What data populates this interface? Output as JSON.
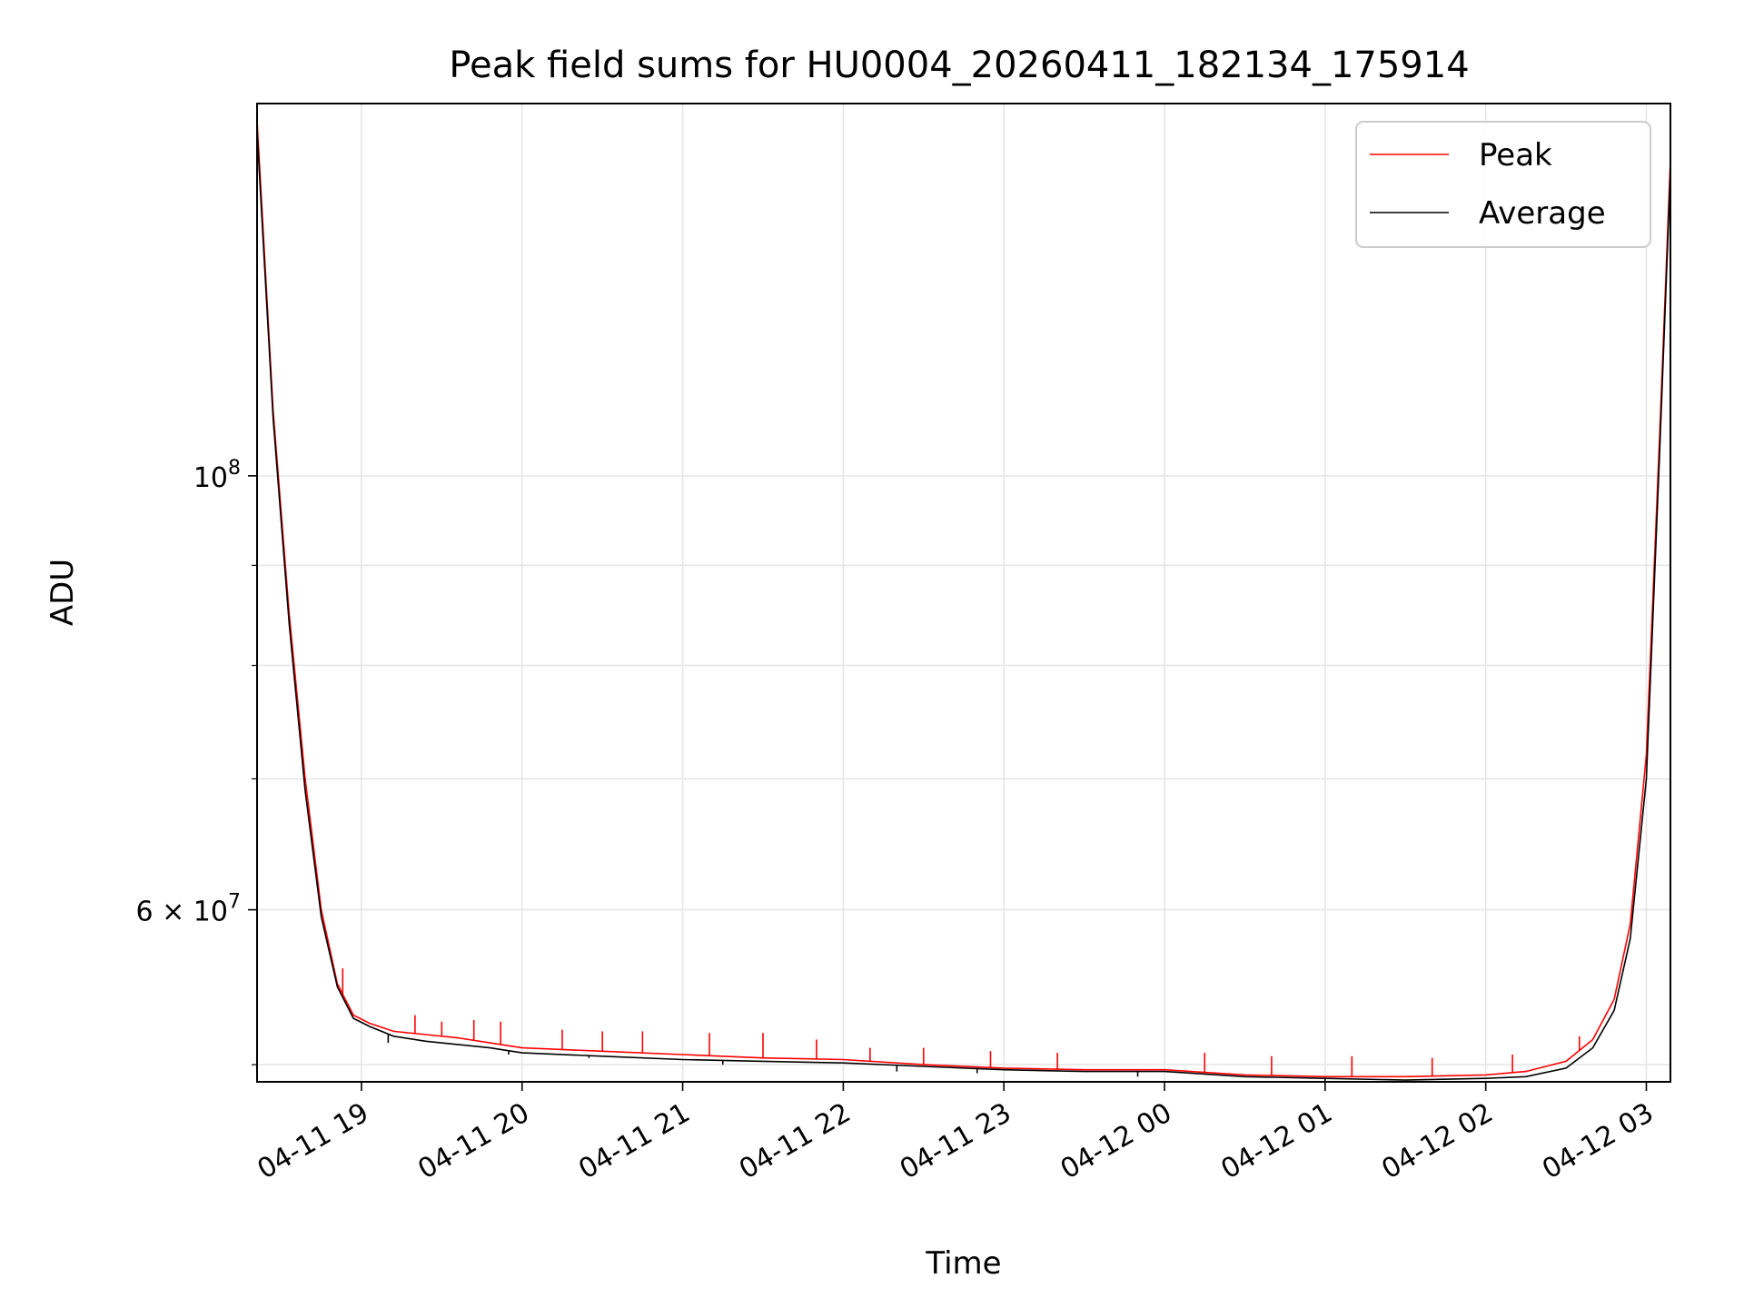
{
  "chart_data": {
    "type": "line",
    "title": "Peak field sums for HU0004_20260411_182134_175914",
    "xlabel": "Time",
    "ylabel": "ADU",
    "yscale": "log",
    "xlim": [
      "2026-04-11 18:21",
      "2026-04-12 03:09"
    ],
    "ylim": [
      49000000,
      155000000
    ],
    "x_ticks": [
      {
        "label": "04-11 19",
        "value": "2026-04-11 19:00"
      },
      {
        "label": "04-11 20",
        "value": "2026-04-11 20:00"
      },
      {
        "label": "04-11 21",
        "value": "2026-04-11 21:00"
      },
      {
        "label": "04-11 22",
        "value": "2026-04-11 22:00"
      },
      {
        "label": "04-11 23",
        "value": "2026-04-11 23:00"
      },
      {
        "label": "04-12 00",
        "value": "2026-04-12 00:00"
      },
      {
        "label": "04-12 01",
        "value": "2026-04-12 01:00"
      },
      {
        "label": "04-12 02",
        "value": "2026-04-12 02:00"
      },
      {
        "label": "04-12 03",
        "value": "2026-04-12 03:00"
      }
    ],
    "y_ticks": [
      {
        "mantissa": "",
        "base": "10",
        "exp": "8",
        "value": 100000000
      },
      {
        "mantissa": "6",
        "base": "10",
        "exp": "7",
        "value": 60000000
      }
    ],
    "grid": true,
    "legend_position": "upper-right",
    "series": [
      {
        "name": "Peak",
        "color": "#ff0000",
        "x": [
          "2026-04-11 18:21",
          "2026-04-11 18:27",
          "2026-04-11 18:33",
          "2026-04-11 18:39",
          "2026-04-11 18:45",
          "2026-04-11 18:51",
          "2026-04-11 18:57",
          "2026-04-11 19:03",
          "2026-04-11 19:12",
          "2026-04-11 19:24",
          "2026-04-11 19:36",
          "2026-04-11 19:48",
          "2026-04-11 20:00",
          "2026-04-11 20:30",
          "2026-04-11 21:00",
          "2026-04-11 21:30",
          "2026-04-11 22:00",
          "2026-04-11 22:30",
          "2026-04-11 23:00",
          "2026-04-11 23:30",
          "2026-04-12 00:00",
          "2026-04-12 00:30",
          "2026-04-12 01:00",
          "2026-04-12 01:30",
          "2026-04-12 02:00",
          "2026-04-12 02:15",
          "2026-04-12 02:30",
          "2026-04-12 02:40",
          "2026-04-12 02:48",
          "2026-04-12 02:54",
          "2026-04-12 03:00",
          "2026-04-12 03:05",
          "2026-04-12 03:09"
        ],
        "values": [
          152000000,
          108000000,
          85000000,
          70000000,
          60000000,
          55000000,
          53000000,
          52500000,
          52000000,
          51800000,
          51600000,
          51300000,
          51000000,
          50800000,
          50600000,
          50400000,
          50300000,
          50000000,
          49800000,
          49700000,
          49700000,
          49400000,
          49300000,
          49300000,
          49400000,
          49600000,
          50200000,
          51500000,
          54000000,
          59000000,
          72000000,
          105000000,
          145000000
        ],
        "spikes": [
          {
            "x": "2026-04-11 18:53",
            "value": 56000000
          },
          {
            "x": "2026-04-11 19:20",
            "value": 53000000
          },
          {
            "x": "2026-04-11 19:30",
            "value": 52600000
          },
          {
            "x": "2026-04-11 19:42",
            "value": 52700000
          },
          {
            "x": "2026-04-11 19:52",
            "value": 52600000
          },
          {
            "x": "2026-04-11 20:15",
            "value": 52100000
          },
          {
            "x": "2026-04-11 20:30",
            "value": 52000000
          },
          {
            "x": "2026-04-11 20:45",
            "value": 52000000
          },
          {
            "x": "2026-04-11 21:10",
            "value": 51900000
          },
          {
            "x": "2026-04-11 21:30",
            "value": 51900000
          },
          {
            "x": "2026-04-11 21:50",
            "value": 51500000
          },
          {
            "x": "2026-04-11 22:10",
            "value": 51000000
          },
          {
            "x": "2026-04-11 22:30",
            "value": 51000000
          },
          {
            "x": "2026-04-11 22:55",
            "value": 50800000
          },
          {
            "x": "2026-04-11 23:20",
            "value": 50700000
          },
          {
            "x": "2026-04-12 00:15",
            "value": 50700000
          },
          {
            "x": "2026-04-12 00:40",
            "value": 50500000
          },
          {
            "x": "2026-04-12 01:10",
            "value": 50500000
          },
          {
            "x": "2026-04-12 01:40",
            "value": 50400000
          },
          {
            "x": "2026-04-12 02:10",
            "value": 50600000
          },
          {
            "x": "2026-04-12 02:35",
            "value": 51700000
          }
        ]
      },
      {
        "name": "Average",
        "color": "#000000",
        "x": [
          "2026-04-11 18:21",
          "2026-04-11 18:27",
          "2026-04-11 18:33",
          "2026-04-11 18:39",
          "2026-04-11 18:45",
          "2026-04-11 18:51",
          "2026-04-11 18:57",
          "2026-04-11 19:03",
          "2026-04-11 19:12",
          "2026-04-11 19:24",
          "2026-04-11 19:36",
          "2026-04-11 19:48",
          "2026-04-11 20:00",
          "2026-04-11 20:30",
          "2026-04-11 21:00",
          "2026-04-11 21:30",
          "2026-04-11 22:00",
          "2026-04-11 22:30",
          "2026-04-11 23:00",
          "2026-04-11 23:30",
          "2026-04-12 00:00",
          "2026-04-12 00:30",
          "2026-04-12 01:00",
          "2026-04-12 01:30",
          "2026-04-12 02:00",
          "2026-04-12 02:15",
          "2026-04-12 02:30",
          "2026-04-12 02:40",
          "2026-04-12 02:48",
          "2026-04-12 02:54",
          "2026-04-12 03:00",
          "2026-04-12 03:05",
          "2026-04-12 03:09"
        ],
        "values": [
          150000000,
          107000000,
          84000000,
          69000000,
          59500000,
          54800000,
          52800000,
          52300000,
          51700000,
          51400000,
          51200000,
          51000000,
          50700000,
          50500000,
          50300000,
          50200000,
          50100000,
          49900000,
          49700000,
          49600000,
          49600000,
          49300000,
          49200000,
          49100000,
          49200000,
          49300000,
          49800000,
          51000000,
          53300000,
          58000000,
          70000000,
          103000000,
          143000000
        ],
        "dips": [
          {
            "x": "2026-04-11 19:10",
            "value": 51300000
          },
          {
            "x": "2026-04-11 19:55",
            "value": 50600000
          },
          {
            "x": "2026-04-11 20:25",
            "value": 50400000
          },
          {
            "x": "2026-04-11 21:15",
            "value": 50000000
          },
          {
            "x": "2026-04-11 22:20",
            "value": 49600000
          },
          {
            "x": "2026-04-11 22:50",
            "value": 49500000
          },
          {
            "x": "2026-04-11 23:50",
            "value": 49300000
          },
          {
            "x": "2026-04-12 01:00",
            "value": 48950000
          }
        ]
      }
    ]
  }
}
